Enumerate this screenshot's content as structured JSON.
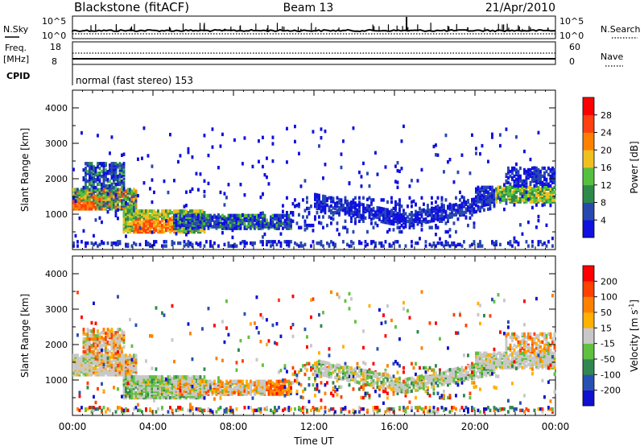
{
  "header": {
    "station": "Blackstone (fitACF)",
    "beam": "Beam 13",
    "date": "21/Apr/2010"
  },
  "top_panels": {
    "nsky_label": "N.Sky",
    "nsky_ticks": [
      "10^5",
      "10^0"
    ],
    "nsearch_label": "N.Search",
    "nsearch_ticks": [
      "10^5",
      "10^0"
    ],
    "freq_label": "Freq.",
    "freq_unit": "[MHz]",
    "freq_ticks": [
      "18",
      "8"
    ],
    "nave_label": "Nave",
    "nave_ticks": [
      "60",
      "0"
    ],
    "cpid_label": "CPID",
    "cpid_value": "normal (fast stereo) 153"
  },
  "chart_data": [
    {
      "type": "heatmap",
      "name": "power",
      "ylabel": "Slant Range [km]",
      "ylim": [
        0,
        4500
      ],
      "yticks": [
        1000,
        2000,
        3000,
        4000
      ],
      "xlim": [
        0,
        24
      ],
      "colorbar": {
        "label": "Power [dB]",
        "ticks": [
          "4",
          "8",
          "12",
          "16",
          "20",
          "24",
          "28"
        ],
        "colors": [
          "#1010e0",
          "#2848b0",
          "#2e8a4a",
          "#55c040",
          "#f0c020",
          "#ff8000",
          "#ff4010",
          "#ff0000"
        ]
      }
    },
    {
      "type": "heatmap",
      "name": "velocity",
      "ylabel": "Slant Range [km]",
      "ylim": [
        0,
        4500
      ],
      "yticks": [
        1000,
        2000,
        3000,
        4000
      ],
      "xlim": [
        0,
        24
      ],
      "xlabel": "Time UT",
      "xticklabels": [
        "00:00",
        "04:00",
        "08:00",
        "12:00",
        "16:00",
        "20:00",
        "00:00"
      ],
      "colorbar": {
        "label": "Velocity [m s",
        "label_sup": "-1",
        "label_end": "]",
        "ticks": [
          "200",
          "100",
          "50",
          "15",
          "-15",
          "-50",
          "-100",
          "-200"
        ],
        "colors": [
          "#1010d0",
          "#2850b0",
          "#308850",
          "#60c040",
          "#c8c8c8",
          "#ffb000",
          "#ff8000",
          "#ff4000",
          "#ff0000"
        ]
      }
    }
  ]
}
